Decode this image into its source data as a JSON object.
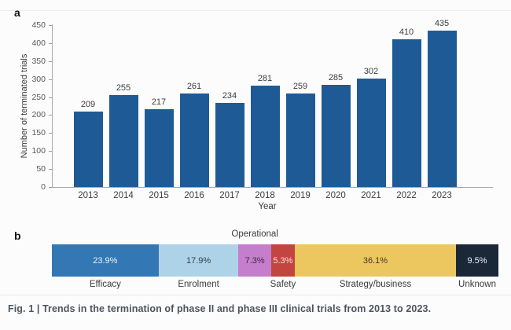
{
  "figure": {
    "caption": "Fig. 1 | Trends in the termination of phase II and phase III clinical trials from 2013 to 2023."
  },
  "panel_a": {
    "label": "a"
  },
  "panel_b": {
    "label": "b",
    "operational_top_label": "Operational"
  },
  "colors": {
    "bar_blue": "#1e5b96",
    "axis_gray": "#a8a8a8",
    "efficacy": "#3377b4",
    "enrolment": "#aed3e9",
    "operational": "#c47ecb",
    "safety": "#c2453f",
    "strategy_business": "#ecc65f",
    "unknown": "#1b2838"
  },
  "chart_data": [
    {
      "type": "bar",
      "panel": "a",
      "categories": [
        "2013",
        "2014",
        "2015",
        "2016",
        "2017",
        "2018",
        "2019",
        "2020",
        "2021",
        "2022",
        "2023"
      ],
      "values": [
        209,
        255,
        217,
        261,
        234,
        281,
        259,
        285,
        302,
        410,
        435
      ],
      "xlabel": "Year",
      "ylabel": "Number of terminated trials",
      "ylim": [
        0,
        450
      ],
      "ytick_step": 50,
      "grid": false,
      "legend": "none",
      "bar_color": "#1e5b96",
      "value_labels_shown": true
    },
    {
      "type": "bar",
      "panel": "b",
      "subtype": "stacked-horizontal-100pct",
      "segments": [
        {
          "label": "Efficacy",
          "pct": 23.9,
          "pct_label": "23.9%",
          "color": "#3377b4",
          "text_color": "#eef4fa",
          "cat_label_position": "below"
        },
        {
          "label": "Enrolment",
          "pct": 17.9,
          "pct_label": "17.9%",
          "color": "#aed3e9",
          "text_color": "#333f4c",
          "cat_label_position": "below"
        },
        {
          "label": "Operational",
          "pct": 7.3,
          "pct_label": "7.3%",
          "color": "#c47ecb",
          "text_color": "#3c2a47",
          "cat_label_position": "above"
        },
        {
          "label": "Safety",
          "pct": 5.3,
          "pct_label": "5.3%",
          "color": "#c2453f",
          "text_color": "#f6e2e1",
          "cat_label_position": "below"
        },
        {
          "label": "Strategy/business",
          "pct": 36.1,
          "pct_label": "36.1%",
          "color": "#ecc65f",
          "text_color": "#42392a",
          "cat_label_position": "below"
        },
        {
          "label": "Unknown",
          "pct": 9.5,
          "pct_label": "9.5%",
          "color": "#1b2838",
          "text_color": "#eceff2",
          "cat_label_position": "below"
        }
      ]
    }
  ]
}
